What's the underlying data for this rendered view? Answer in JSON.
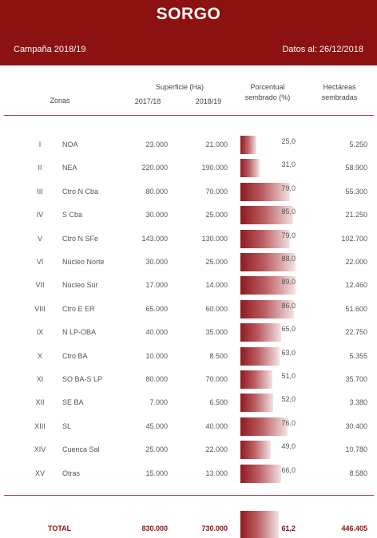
{
  "header": {
    "title": "SORGO",
    "campaign": "Campaña 2018/19",
    "date": "Datos al: 26/12/2018"
  },
  "columns": {
    "zonas": "Zonas",
    "superficie": "Superficie (Ha)",
    "year_a": "2017/18",
    "year_b": "2018/19",
    "pct_line1": "Porcentual",
    "pct_line2": "sembrado (%)",
    "ha_line1": "Hectáreas",
    "ha_line2": "sembradas"
  },
  "rows": [
    {
      "num": "I",
      "zone": "NOA",
      "a": "23.000",
      "b": "21.000",
      "pct": "25,0",
      "pct_value": 25.0,
      "ha": "5.250"
    },
    {
      "num": "II",
      "zone": "NEA",
      "a": "220.000",
      "b": "190.000",
      "pct": "31,0",
      "pct_value": 31.0,
      "ha": "58.900"
    },
    {
      "num": "III",
      "zone": "Ctro N Cba",
      "a": "80.000",
      "b": "70.000",
      "pct": "79,0",
      "pct_value": 79.0,
      "ha": "55.300"
    },
    {
      "num": "IV",
      "zone": "S Cba",
      "a": "30.000",
      "b": "25.000",
      "pct": "85,0",
      "pct_value": 85.0,
      "ha": "21.250"
    },
    {
      "num": "V",
      "zone": "Ctro N SFe",
      "a": "143.000",
      "b": "130.000",
      "pct": "79,0",
      "pct_value": 79.0,
      "ha": "102.700"
    },
    {
      "num": "VI",
      "zone": "Núcleo Norte",
      "a": "30.000",
      "b": "25.000",
      "pct": "88,0",
      "pct_value": 88.0,
      "ha": "22.000"
    },
    {
      "num": "VII",
      "zone": "Núcleo Sur",
      "a": "17.000",
      "b": "14.000",
      "pct": "89,0",
      "pct_value": 89.0,
      "ha": "12.460"
    },
    {
      "num": "VIII",
      "zone": "Ctro E ER",
      "a": "65.000",
      "b": "60.000",
      "pct": "86,0",
      "pct_value": 86.0,
      "ha": "51.600"
    },
    {
      "num": "IX",
      "zone": "N LP-OBA",
      "a": "40.000",
      "b": "35.000",
      "pct": "65,0",
      "pct_value": 65.0,
      "ha": "22.750"
    },
    {
      "num": "X",
      "zone": "Ctro BA",
      "a": "10.000",
      "b": "8.500",
      "pct": "63,0",
      "pct_value": 63.0,
      "ha": "5.355"
    },
    {
      "num": "XI",
      "zone": "SO BA-S LP",
      "a": "80.000",
      "b": "70.000",
      "pct": "51,0",
      "pct_value": 51.0,
      "ha": "35.700"
    },
    {
      "num": "XII",
      "zone": "SE BA",
      "a": "7.000",
      "b": "6.500",
      "pct": "52,0",
      "pct_value": 52.0,
      "ha": "3.380"
    },
    {
      "num": "XIII",
      "zone": "SL",
      "a": "45.000",
      "b": "40.000",
      "pct": "76,0",
      "pct_value": 76.0,
      "ha": "30.400"
    },
    {
      "num": "XIV",
      "zone": "Cuenca Sal",
      "a": "25.000",
      "b": "22.000",
      "pct": "49,0",
      "pct_value": 49.0,
      "ha": "10.780"
    },
    {
      "num": "XV",
      "zone": "Otras",
      "a": "15.000",
      "b": "13.000",
      "pct": "66,0",
      "pct_value": 66.0,
      "ha": "8.580"
    }
  ],
  "total": {
    "label": "TOTAL",
    "a": "830.000",
    "b": "730.000",
    "pct": "61,2",
    "pct_value": 61.2,
    "ha": "446.405"
  }
}
